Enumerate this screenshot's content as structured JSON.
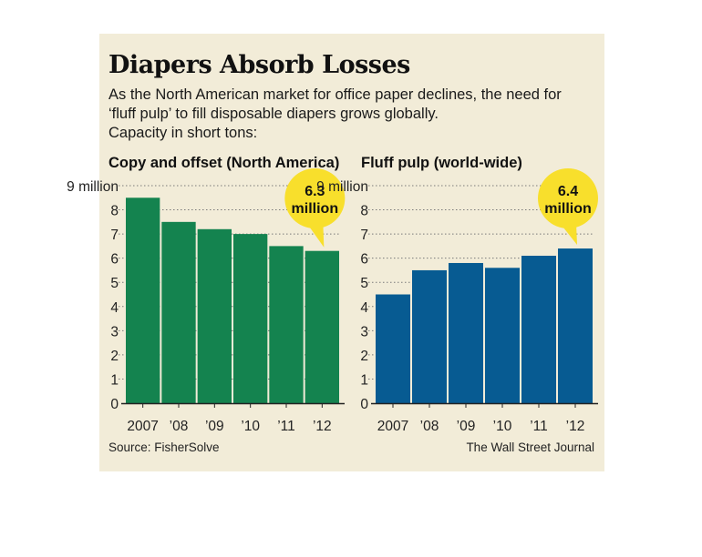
{
  "title": "Diapers Absorb Losses",
  "subtitle_lines": [
    "As the North American market for office paper declines, the need for",
    "‘fluff pulp’ to fill disposable diapers grows globally.",
    "Capacity in short tons:"
  ],
  "source": "Source: FisherSolve",
  "credit": "The Wall Street Journal",
  "colors": {
    "panel_bg": "#f2ecd8",
    "green": "#14834f",
    "blue": "#075b92",
    "callout": "#f8df2c"
  },
  "chart_data": [
    {
      "type": "bar",
      "title": "Copy and offset (North America)",
      "categories": [
        "2007",
        "’08",
        "’09",
        "’10",
        "’11",
        "’12"
      ],
      "values": [
        8.5,
        7.5,
        7.2,
        7.0,
        6.5,
        6.3
      ],
      "ylim": [
        0,
        9
      ],
      "ytick_labels": [
        "0",
        "1",
        "2",
        "3",
        "4",
        "5",
        "6",
        "7",
        "8",
        "9 million"
      ],
      "color": "#14834f",
      "callout": {
        "lines": [
          "6.3",
          "million"
        ]
      }
    },
    {
      "type": "bar",
      "title": "Fluff pulp (world-wide)",
      "categories": [
        "2007",
        "’08",
        "’09",
        "’10",
        "’11",
        "’12"
      ],
      "values": [
        4.5,
        5.5,
        5.8,
        5.6,
        6.1,
        6.4
      ],
      "ylim": [
        0,
        9
      ],
      "ytick_labels": [
        "0",
        "1",
        "2",
        "3",
        "4",
        "5",
        "6",
        "7",
        "8",
        "9 million"
      ],
      "color": "#075b92",
      "callout": {
        "lines": [
          "6.4",
          "million"
        ]
      }
    }
  ]
}
